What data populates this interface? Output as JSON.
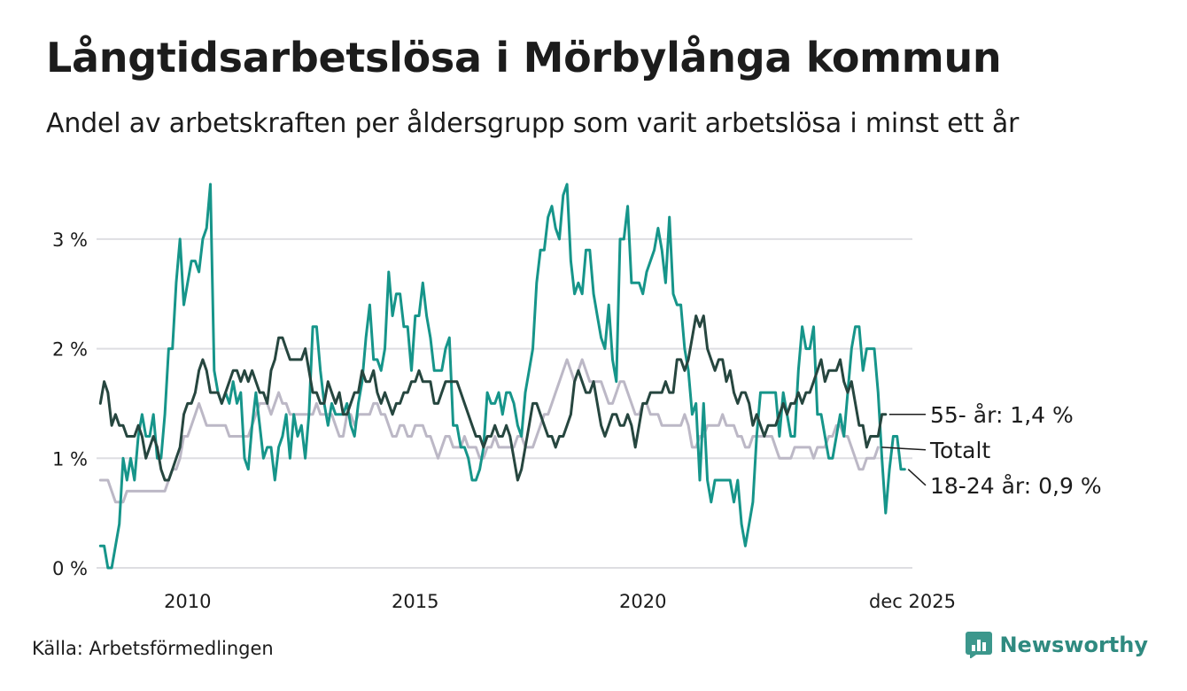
{
  "title": "Långtidsarbetslösa i Mörbylånga kommun",
  "subtitle": "Andel av arbetskraften per åldersgrupp som varit arbetslösa i minst ett år",
  "source": "Källa: Arbetsförmedlingen",
  "brand": "Newsworthy",
  "colors": {
    "series_18_24": "#16958a",
    "series_55": "#26463f",
    "series_total": "#bcb8c6",
    "grid": "#dedee2",
    "text": "#1c1c1c",
    "brand": "#2f8a80"
  },
  "chart_data": {
    "type": "line",
    "title": "Långtidsarbetslösa i Mörbylånga kommun",
    "xlabel": "",
    "ylabel": "",
    "x_start": "2008-02",
    "x_end": "2025-12",
    "xlim": [
      2008.0,
      2025.92
    ],
    "ylim": [
      0,
      3.5
    ],
    "grid": true,
    "y_ticks": [
      {
        "value": 0,
        "label": "0 %"
      },
      {
        "value": 1,
        "label": "1 %"
      },
      {
        "value": 2,
        "label": "2 %"
      },
      {
        "value": 3,
        "label": "3 %"
      }
    ],
    "x_ticks": [
      {
        "value": 2010,
        "label": "2010"
      },
      {
        "value": 2015,
        "label": "2015"
      },
      {
        "value": 2020,
        "label": "2020"
      },
      {
        "value": 2025.92,
        "label": "dec 2025"
      }
    ],
    "series": [
      {
        "name": "Totalt",
        "label": "Totalt",
        "color_key": "series_total",
        "values": [
          0.8,
          0.8,
          0.8,
          0.7,
          0.6,
          0.6,
          0.6,
          0.7,
          0.7,
          0.7,
          0.7,
          0.7,
          0.7,
          0.7,
          0.7,
          0.7,
          0.7,
          0.7,
          0.8,
          0.9,
          0.9,
          1.0,
          1.2,
          1.2,
          1.3,
          1.4,
          1.5,
          1.4,
          1.3,
          1.3,
          1.3,
          1.3,
          1.3,
          1.3,
          1.2,
          1.2,
          1.2,
          1.2,
          1.2,
          1.2,
          1.3,
          1.4,
          1.5,
          1.5,
          1.5,
          1.4,
          1.5,
          1.6,
          1.5,
          1.5,
          1.4,
          1.4,
          1.4,
          1.4,
          1.4,
          1.4,
          1.4,
          1.5,
          1.4,
          1.4,
          1.4,
          1.4,
          1.3,
          1.2,
          1.2,
          1.4,
          1.4,
          1.3,
          1.4,
          1.4,
          1.4,
          1.4,
          1.5,
          1.5,
          1.4,
          1.4,
          1.3,
          1.2,
          1.2,
          1.3,
          1.3,
          1.2,
          1.2,
          1.3,
          1.3,
          1.3,
          1.2,
          1.2,
          1.1,
          1.0,
          1.1,
          1.2,
          1.2,
          1.1,
          1.1,
          1.1,
          1.2,
          1.1,
          1.1,
          1.1,
          1.0,
          1.0,
          1.1,
          1.1,
          1.2,
          1.1,
          1.1,
          1.1,
          1.1,
          1.1,
          1.2,
          1.2,
          1.1,
          1.1,
          1.1,
          1.2,
          1.3,
          1.4,
          1.4,
          1.5,
          1.6,
          1.7,
          1.8,
          1.9,
          1.8,
          1.7,
          1.8,
          1.9,
          1.8,
          1.7,
          1.7,
          1.7,
          1.7,
          1.6,
          1.5,
          1.5,
          1.6,
          1.7,
          1.7,
          1.6,
          1.5,
          1.4,
          1.4,
          1.5,
          1.5,
          1.4,
          1.4,
          1.4,
          1.3,
          1.3,
          1.3,
          1.3,
          1.3,
          1.3,
          1.4,
          1.3,
          1.1,
          1.1,
          1.2,
          1.2,
          1.3,
          1.3,
          1.3,
          1.3,
          1.4,
          1.3,
          1.3,
          1.3,
          1.2,
          1.2,
          1.1,
          1.1,
          1.2,
          1.2,
          1.2,
          1.2,
          1.2,
          1.2,
          1.1,
          1.0,
          1.0,
          1.0,
          1.0,
          1.1,
          1.1,
          1.1,
          1.1,
          1.1,
          1.0,
          1.1,
          1.1,
          1.1,
          1.2,
          1.2,
          1.3,
          1.3,
          1.2,
          1.2,
          1.1,
          1.0,
          0.9,
          0.9,
          1.0,
          1.0,
          1.0,
          1.1
        ],
        "end_label": "Totalt"
      },
      {
        "name": "18-24 år",
        "label": "18-24 år: 0,9 %",
        "color_key": "series_18_24",
        "values": [
          0.2,
          0.2,
          0.0,
          0.0,
          0.2,
          0.4,
          1.0,
          0.8,
          1.0,
          0.8,
          1.2,
          1.4,
          1.2,
          1.2,
          1.4,
          1.0,
          1.0,
          1.4,
          2.0,
          2.0,
          2.6,
          3.0,
          2.4,
          2.6,
          2.8,
          2.8,
          2.7,
          3.0,
          3.1,
          3.5,
          1.8,
          1.6,
          1.5,
          1.6,
          1.5,
          1.7,
          1.5,
          1.6,
          1.0,
          0.9,
          1.3,
          1.6,
          1.3,
          1.0,
          1.1,
          1.1,
          0.8,
          1.1,
          1.2,
          1.4,
          1.0,
          1.4,
          1.2,
          1.3,
          1.0,
          1.4,
          2.2,
          2.2,
          1.8,
          1.5,
          1.3,
          1.5,
          1.4,
          1.4,
          1.4,
          1.5,
          1.3,
          1.2,
          1.5,
          1.7,
          2.1,
          2.4,
          1.9,
          1.9,
          1.8,
          2.0,
          2.7,
          2.3,
          2.5,
          2.5,
          2.2,
          2.2,
          1.8,
          2.3,
          2.3,
          2.6,
          2.3,
          2.1,
          1.8,
          1.8,
          1.8,
          2.0,
          2.1,
          1.3,
          1.3,
          1.1,
          1.1,
          1.0,
          0.8,
          0.8,
          0.9,
          1.1,
          1.6,
          1.5,
          1.5,
          1.6,
          1.4,
          1.6,
          1.6,
          1.5,
          1.3,
          1.2,
          1.6,
          1.8,
          2.0,
          2.6,
          2.9,
          2.9,
          3.2,
          3.3,
          3.1,
          3.0,
          3.4,
          3.5,
          2.8,
          2.5,
          2.6,
          2.5,
          2.9,
          2.9,
          2.5,
          2.3,
          2.1,
          2.0,
          2.4,
          1.9,
          1.7,
          3.0,
          3.0,
          3.3,
          2.6,
          2.6,
          2.6,
          2.5,
          2.7,
          2.8,
          2.9,
          3.1,
          2.9,
          2.6,
          3.2,
          2.5,
          2.4,
          2.4,
          2.0,
          1.8,
          1.4,
          1.5,
          0.8,
          1.5,
          0.8,
          0.6,
          0.8,
          0.8,
          0.8,
          0.8,
          0.8,
          0.6,
          0.8,
          0.4,
          0.2,
          0.4,
          0.6,
          1.2,
          1.6,
          1.6,
          1.6,
          1.6,
          1.6,
          1.2,
          1.6,
          1.4,
          1.2,
          1.2,
          1.8,
          2.2,
          2.0,
          2.0,
          2.2,
          1.4,
          1.4,
          1.2,
          1.0,
          1.0,
          1.2,
          1.4,
          1.2,
          1.6,
          2.0,
          2.2,
          2.2,
          1.8,
          2.0,
          2.0,
          2.0,
          1.6,
          1.0,
          0.5,
          0.9,
          1.2,
          1.2,
          0.9,
          0.9
        ],
        "end_label": "18-24 år: 0,9 %"
      },
      {
        "name": "55- år",
        "label": "55- år: 1,4 %",
        "color_key": "series_55",
        "values": [
          1.5,
          1.7,
          1.6,
          1.3,
          1.4,
          1.3,
          1.3,
          1.2,
          1.2,
          1.2,
          1.3,
          1.2,
          1.0,
          1.1,
          1.2,
          1.1,
          0.9,
          0.8,
          0.8,
          0.9,
          1.0,
          1.1,
          1.4,
          1.5,
          1.5,
          1.6,
          1.8,
          1.9,
          1.8,
          1.6,
          1.6,
          1.6,
          1.5,
          1.6,
          1.7,
          1.8,
          1.8,
          1.7,
          1.8,
          1.7,
          1.8,
          1.7,
          1.6,
          1.6,
          1.5,
          1.8,
          1.9,
          2.1,
          2.1,
          2.0,
          1.9,
          1.9,
          1.9,
          1.9,
          2.0,
          1.8,
          1.6,
          1.6,
          1.5,
          1.5,
          1.7,
          1.6,
          1.5,
          1.6,
          1.4,
          1.4,
          1.5,
          1.6,
          1.6,
          1.8,
          1.7,
          1.7,
          1.8,
          1.6,
          1.5,
          1.6,
          1.5,
          1.4,
          1.5,
          1.5,
          1.6,
          1.6,
          1.7,
          1.7,
          1.8,
          1.7,
          1.7,
          1.7,
          1.5,
          1.5,
          1.6,
          1.7,
          1.7,
          1.7,
          1.7,
          1.6,
          1.5,
          1.4,
          1.3,
          1.2,
          1.2,
          1.1,
          1.2,
          1.2,
          1.3,
          1.2,
          1.2,
          1.3,
          1.2,
          1.0,
          0.8,
          0.9,
          1.1,
          1.3,
          1.5,
          1.5,
          1.4,
          1.3,
          1.2,
          1.2,
          1.1,
          1.2,
          1.2,
          1.3,
          1.4,
          1.7,
          1.8,
          1.7,
          1.6,
          1.6,
          1.7,
          1.5,
          1.3,
          1.2,
          1.3,
          1.4,
          1.4,
          1.3,
          1.3,
          1.4,
          1.3,
          1.1,
          1.3,
          1.5,
          1.5,
          1.6,
          1.6,
          1.6,
          1.6,
          1.7,
          1.6,
          1.6,
          1.9,
          1.9,
          1.8,
          1.9,
          2.1,
          2.3,
          2.2,
          2.3,
          2.0,
          1.9,
          1.8,
          1.9,
          1.9,
          1.7,
          1.8,
          1.6,
          1.5,
          1.6,
          1.6,
          1.5,
          1.3,
          1.4,
          1.3,
          1.2,
          1.3,
          1.3,
          1.3,
          1.4,
          1.5,
          1.4,
          1.5,
          1.5,
          1.6,
          1.5,
          1.6,
          1.6,
          1.7,
          1.8,
          1.9,
          1.7,
          1.8,
          1.8,
          1.8,
          1.9,
          1.7,
          1.6,
          1.7,
          1.5,
          1.3,
          1.3,
          1.1,
          1.2,
          1.2,
          1.2,
          1.4,
          1.4
        ],
        "end_label": "55- år: 1,4 %"
      }
    ]
  }
}
